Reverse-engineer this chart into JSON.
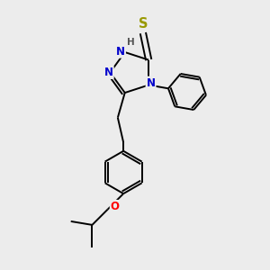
{
  "background_color": "#ececec",
  "bond_color": "#000000",
  "N_color": "#0000cc",
  "O_color": "#ff0000",
  "S_color": "#999900",
  "lw": 1.4,
  "fs": 8.5,
  "xlim": [
    0.0,
    3.2
  ],
  "ylim": [
    0.0,
    3.8
  ]
}
